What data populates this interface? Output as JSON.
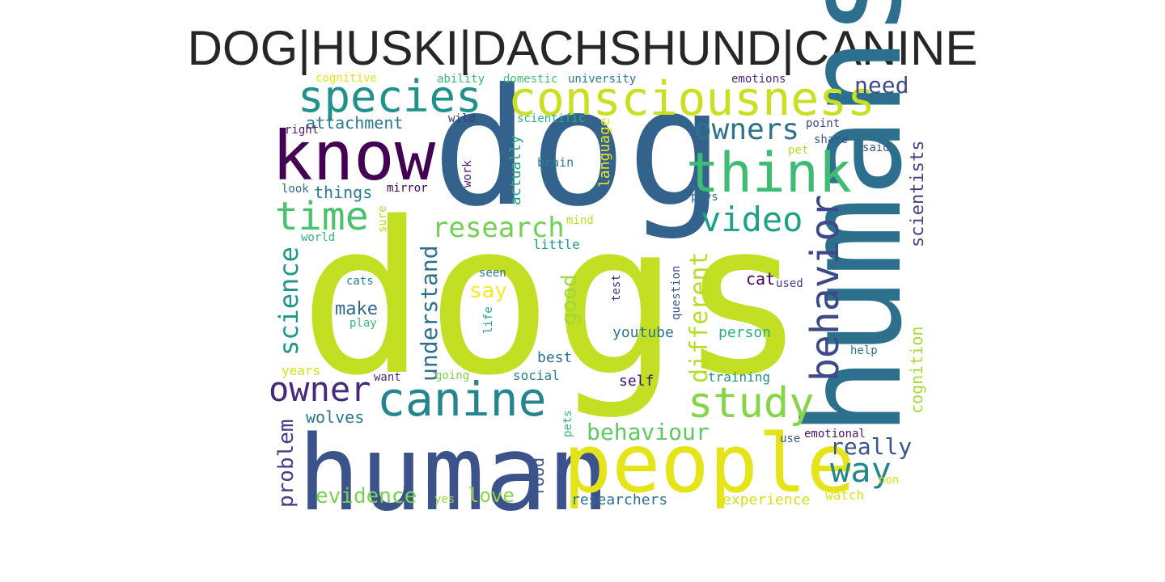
{
  "title": "DOG|HUSKI|DACHSHUND|CANINE",
  "words": [
    {
      "text": "dogs",
      "color": "#c2df23"
    },
    {
      "text": "dog",
      "color": "#33638d"
    },
    {
      "text": "humans",
      "color": "#2d708e"
    },
    {
      "text": "human",
      "color": "#3b528b"
    },
    {
      "text": "people",
      "color": "#e5e419"
    },
    {
      "text": "know",
      "color": "#440154"
    },
    {
      "text": "consciousness",
      "color": "#c8e020"
    },
    {
      "text": "think",
      "color": "#3fbc73"
    },
    {
      "text": "species",
      "color": "#21918c"
    },
    {
      "text": "canine",
      "color": "#25858e"
    },
    {
      "text": "study",
      "color": "#86d549"
    },
    {
      "text": "time",
      "color": "#4ac16d"
    },
    {
      "text": "behavior",
      "color": "#3e4989"
    },
    {
      "text": "video",
      "color": "#1fa187"
    },
    {
      "text": "owners",
      "color": "#2c728e"
    },
    {
      "text": "owner",
      "color": "#482878"
    },
    {
      "text": "research",
      "color": "#73d056"
    },
    {
      "text": "science",
      "color": "#1f988b"
    },
    {
      "text": "way",
      "color": "#25858e"
    },
    {
      "text": "need",
      "color": "#3e4a89"
    },
    {
      "text": "different",
      "color": "#b5de2b"
    },
    {
      "text": "understand",
      "color": "#2d708e"
    },
    {
      "text": "behaviour",
      "color": "#5ec962"
    },
    {
      "text": "really",
      "color": "#39568c"
    },
    {
      "text": "evidence",
      "color": "#7ad151"
    },
    {
      "text": "problem",
      "color": "#433e85"
    },
    {
      "text": "good",
      "color": "#9bd93c"
    },
    {
      "text": "attachment",
      "color": "#2a788e"
    },
    {
      "text": "scientists",
      "color": "#424086"
    },
    {
      "text": "wolves",
      "color": "#2a778e"
    },
    {
      "text": "love",
      "color": "#8bd646"
    },
    {
      "text": "cognition",
      "color": "#a5db36"
    },
    {
      "text": "things",
      "color": "#287c8e"
    },
    {
      "text": "say",
      "color": "#fde725"
    },
    {
      "text": "make",
      "color": "#31668e"
    },
    {
      "text": "food",
      "color": "#3a548c"
    },
    {
      "text": "actually",
      "color": "#22a785"
    },
    {
      "text": "language",
      "color": "#f1e51d"
    },
    {
      "text": "youtube",
      "color": "#2a788e"
    },
    {
      "text": "person",
      "color": "#29af7f"
    },
    {
      "text": "researchers",
      "color": "#2e6f8e"
    },
    {
      "text": "experience",
      "color": "#d0e11c"
    },
    {
      "text": "self",
      "color": "#3b0f70"
    },
    {
      "text": "training",
      "color": "#21918c"
    },
    {
      "text": "best",
      "color": "#2d708e"
    },
    {
      "text": "social",
      "color": "#27808e"
    },
    {
      "text": "cat",
      "color": "#440154"
    },
    {
      "text": "watch",
      "color": "#dde318"
    },
    {
      "text": "years",
      "color": "#cde11d"
    },
    {
      "text": "little",
      "color": "#1e9c89"
    },
    {
      "text": "brain",
      "color": "#27808e"
    },
    {
      "text": "used",
      "color": "#443a83"
    },
    {
      "text": "emotional",
      "color": "#471365"
    },
    {
      "text": "use",
      "color": "#3a548c"
    },
    {
      "text": "wild",
      "color": "#453781"
    },
    {
      "text": "scientific",
      "color": "#29af7f"
    },
    {
      "text": "cognitive",
      "color": "#e2e418"
    },
    {
      "text": "ability",
      "color": "#35b779"
    },
    {
      "text": "domestic",
      "color": "#44bf70"
    },
    {
      "text": "university",
      "color": "#2a788e"
    },
    {
      "text": "emotions",
      "color": "#482475"
    },
    {
      "text": "right",
      "color": "#482173"
    },
    {
      "text": "point",
      "color": "#3e4989"
    },
    {
      "text": "share",
      "color": "#3b528b"
    },
    {
      "text": "said",
      "color": "#38598c"
    },
    {
      "text": "pet",
      "color": "#b8de29"
    },
    {
      "text": "mirror",
      "color": "#440154"
    },
    {
      "text": "look",
      "color": "#31688e"
    },
    {
      "text": "phys",
      "color": "#2e6e8e"
    },
    {
      "text": "mind",
      "color": "#c0df25"
    },
    {
      "text": "world",
      "color": "#31b57b"
    },
    {
      "text": "sure",
      "color": "#b5de2b"
    },
    {
      "text": "work",
      "color": "#481467"
    },
    {
      "text": "seen",
      "color": "#2a788e"
    },
    {
      "text": "test",
      "color": "#472d7b"
    },
    {
      "text": "question",
      "color": "#3b528b"
    },
    {
      "text": "life",
      "color": "#20a486"
    },
    {
      "text": "cats",
      "color": "#287d8e"
    },
    {
      "text": "play",
      "color": "#3dbc74"
    },
    {
      "text": "help",
      "color": "#2e6e8e"
    },
    {
      "text": "want",
      "color": "#472a7a"
    },
    {
      "text": "going",
      "color": "#7fd34e"
    },
    {
      "text": "pets",
      "color": "#35b779"
    },
    {
      "text": "yes",
      "color": "#98d83e"
    },
    {
      "text": "non",
      "color": "#d8e219"
    }
  ]
}
